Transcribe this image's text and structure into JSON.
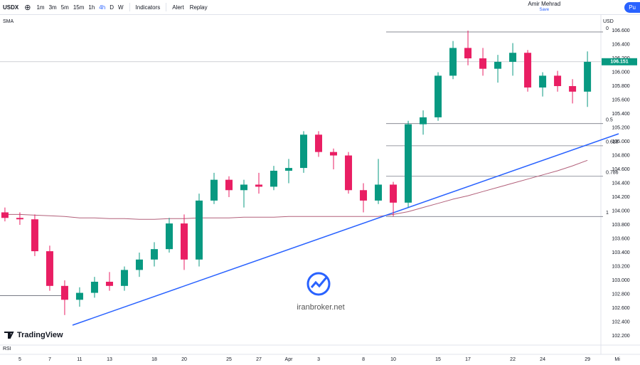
{
  "toolbar": {
    "symbol": "USDX",
    "intervals": [
      "1m",
      "3m",
      "5m",
      "15m",
      "1h",
      "4h",
      "D",
      "W"
    ],
    "active_interval": "4h",
    "indicators": "Indicators",
    "alert": "Alert",
    "replay": "Replay",
    "user": "Amir Mehrad",
    "save": "Save",
    "publish": "Pu"
  },
  "chart_data": {
    "type": "candlestick",
    "indicator": "SMA",
    "currency": "USD",
    "pane": "RSI",
    "brand": "TradingView",
    "watermark": "iranbroker.net",
    "up_color": "#089981",
    "down_color": "#e91e63",
    "sma_color": "#b2607a",
    "open": [
      103.98,
      103.9,
      103.88,
      103.42,
      102.92,
      102.72,
      102.82,
      102.98,
      102.92,
      103.15,
      103.3,
      103.45,
      103.82,
      103.3,
      104.15,
      104.45,
      104.3,
      104.38,
      104.35,
      104.58,
      104.62,
      105.1,
      104.85,
      104.8,
      104.3,
      104.15,
      104.38,
      104.12,
      105.25,
      105.35,
      105.95,
      106.35,
      106.2,
      106.05,
      106.15,
      106.28,
      105.78,
      105.95,
      105.8,
      105.72
    ],
    "high": [
      104.05,
      103.98,
      103.95,
      103.5,
      103.0,
      102.9,
      103.05,
      103.12,
      103.2,
      103.4,
      103.55,
      103.9,
      103.95,
      104.25,
      104.55,
      104.5,
      104.45,
      104.55,
      104.65,
      104.75,
      105.15,
      105.15,
      104.9,
      104.85,
      104.4,
      104.75,
      104.42,
      105.3,
      105.45,
      106.0,
      106.45,
      106.6,
      106.35,
      106.25,
      106.42,
      106.32,
      106.0,
      106.02,
      105.9,
      106.3
    ],
    "low": [
      103.85,
      103.8,
      103.35,
      102.85,
      102.5,
      102.62,
      102.75,
      102.85,
      102.85,
      103.05,
      103.2,
      103.4,
      103.15,
      103.2,
      104.1,
      104.2,
      104.05,
      104.25,
      104.3,
      104.4,
      104.55,
      104.78,
      104.6,
      104.25,
      103.98,
      104.1,
      103.92,
      104.05,
      105.1,
      105.3,
      105.9,
      106.1,
      105.95,
      105.85,
      105.95,
      105.72,
      105.65,
      105.72,
      105.55,
      105.5
    ],
    "close": [
      103.9,
      103.88,
      103.42,
      102.92,
      102.72,
      102.82,
      102.98,
      102.92,
      103.15,
      103.3,
      103.45,
      103.82,
      103.3,
      104.15,
      104.45,
      104.3,
      104.38,
      104.35,
      104.58,
      104.62,
      105.1,
      104.85,
      104.8,
      104.3,
      104.15,
      104.38,
      104.12,
      105.25,
      105.35,
      105.95,
      106.35,
      106.2,
      106.05,
      106.15,
      106.28,
      105.78,
      105.95,
      105.8,
      105.72,
      106.15
    ],
    "sma": [
      103.95,
      103.95,
      103.94,
      103.93,
      103.92,
      103.9,
      103.9,
      103.89,
      103.89,
      103.88,
      103.88,
      103.89,
      103.89,
      103.9,
      103.9,
      103.9,
      103.91,
      103.91,
      103.91,
      103.92,
      103.92,
      103.92,
      103.92,
      103.92,
      103.92,
      103.92,
      103.95,
      103.99,
      104.05,
      104.11,
      104.17,
      104.22,
      104.28,
      104.34,
      104.4,
      104.46,
      104.52,
      104.58,
      104.65,
      104.73
    ],
    "last_price": 106.151,
    "hline": 102.78,
    "fib": [
      {
        "label": "0",
        "price": 106.58
      },
      {
        "label": "0.5",
        "price": 105.26
      },
      {
        "label": "0.618",
        "price": 104.94
      },
      {
        "label": "0.786",
        "price": 104.5
      },
      {
        "label": "1",
        "price": 103.92
      }
    ],
    "xlim": [
      -0.33,
      39.9
    ],
    "ylim": [
      102.067,
      106.836
    ],
    "xticks": [
      {
        "value": 1,
        "label": "5"
      },
      {
        "value": 3,
        "label": "7"
      },
      {
        "value": 5,
        "label": "11"
      },
      {
        "value": 7,
        "label": "13"
      },
      {
        "value": 10,
        "label": "18"
      },
      {
        "value": 12,
        "label": "20"
      },
      {
        "value": 15,
        "label": "25"
      },
      {
        "value": 17,
        "label": "27"
      },
      {
        "value": 19,
        "label": "Apr"
      },
      {
        "value": 21,
        "label": "3"
      },
      {
        "value": 24,
        "label": "8"
      },
      {
        "value": 26,
        "label": "10"
      },
      {
        "value": 29,
        "label": "15"
      },
      {
        "value": 31,
        "label": "17"
      },
      {
        "value": 34,
        "label": "22"
      },
      {
        "value": 36,
        "label": "24"
      },
      {
        "value": 39,
        "label": "29"
      },
      {
        "value": 41,
        "label": "Mi"
      }
    ],
    "yticks": [
      {
        "value": 106.6,
        "label": "106.600"
      },
      {
        "value": 106.4,
        "label": "106.400"
      },
      {
        "value": 106.2,
        "label": "106.200"
      },
      {
        "value": 106.0,
        "label": "106.000"
      },
      {
        "value": 105.8,
        "label": "105.800"
      },
      {
        "value": 105.6,
        "label": "105.600"
      },
      {
        "value": 105.4,
        "label": "105.400"
      },
      {
        "value": 105.2,
        "label": "105.200"
      },
      {
        "value": 105.0,
        "label": "105.000"
      },
      {
        "value": 104.8,
        "label": "104.800"
      },
      {
        "value": 104.6,
        "label": "104.600"
      },
      {
        "value": 104.4,
        "label": "104.400"
      },
      {
        "value": 104.2,
        "label": "104.200"
      },
      {
        "value": 104.0,
        "label": "104.000"
      },
      {
        "value": 103.8,
        "label": "103.800"
      },
      {
        "value": 103.6,
        "label": "103.600"
      },
      {
        "value": 103.4,
        "label": "103.400"
      },
      {
        "value": 103.2,
        "label": "103.200"
      },
      {
        "value": 103.0,
        "label": "103.000"
      },
      {
        "value": 102.8,
        "label": "102.800"
      },
      {
        "value": 102.6,
        "label": "102.600"
      },
      {
        "value": 102.4,
        "label": "102.400"
      },
      {
        "value": 102.2,
        "label": "102.200"
      }
    ]
  }
}
